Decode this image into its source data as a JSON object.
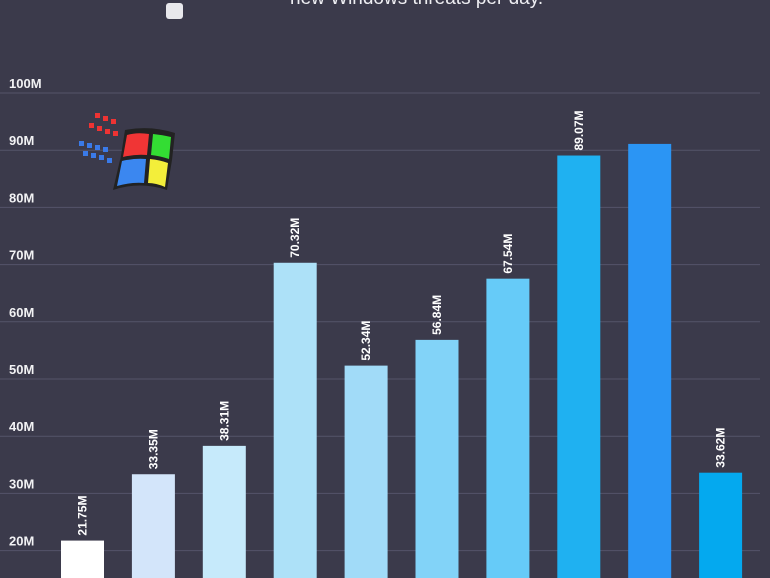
{
  "chart_data": {
    "type": "bar",
    "title": "new Windows threats per day.",
    "legend": {
      "placement": "top-left",
      "marker": "square"
    },
    "xlabel": "",
    "ylabel": "",
    "ylim": [
      15,
      100
    ],
    "yticks": [
      "20M",
      "30M",
      "40M",
      "50M",
      "60M",
      "70M",
      "80M",
      "90M",
      "100M"
    ],
    "ytick_values": [
      20,
      30,
      40,
      50,
      60,
      70,
      80,
      90,
      100
    ],
    "grid": true,
    "unit": "M",
    "values": [
      21.75,
      33.35,
      38.31,
      70.32,
      52.34,
      56.84,
      67.54,
      89.07,
      91.1,
      33.62
    ],
    "labels": [
      "21.75M",
      "33.35M",
      "38.31M",
      "70.32M",
      "52.34M",
      "56.84M",
      "67.54M",
      "89.07M",
      "",
      "33.62M"
    ],
    "colors": [
      "#ffffff",
      "#d3e5fa",
      "#c6eafb",
      "#ade1f8",
      "#a1dbf8",
      "#82d3f8",
      "#66cbf8",
      "#1fb1f1",
      "#2b95f4",
      "#04a9ef"
    ]
  },
  "background": "#3b3a4b"
}
